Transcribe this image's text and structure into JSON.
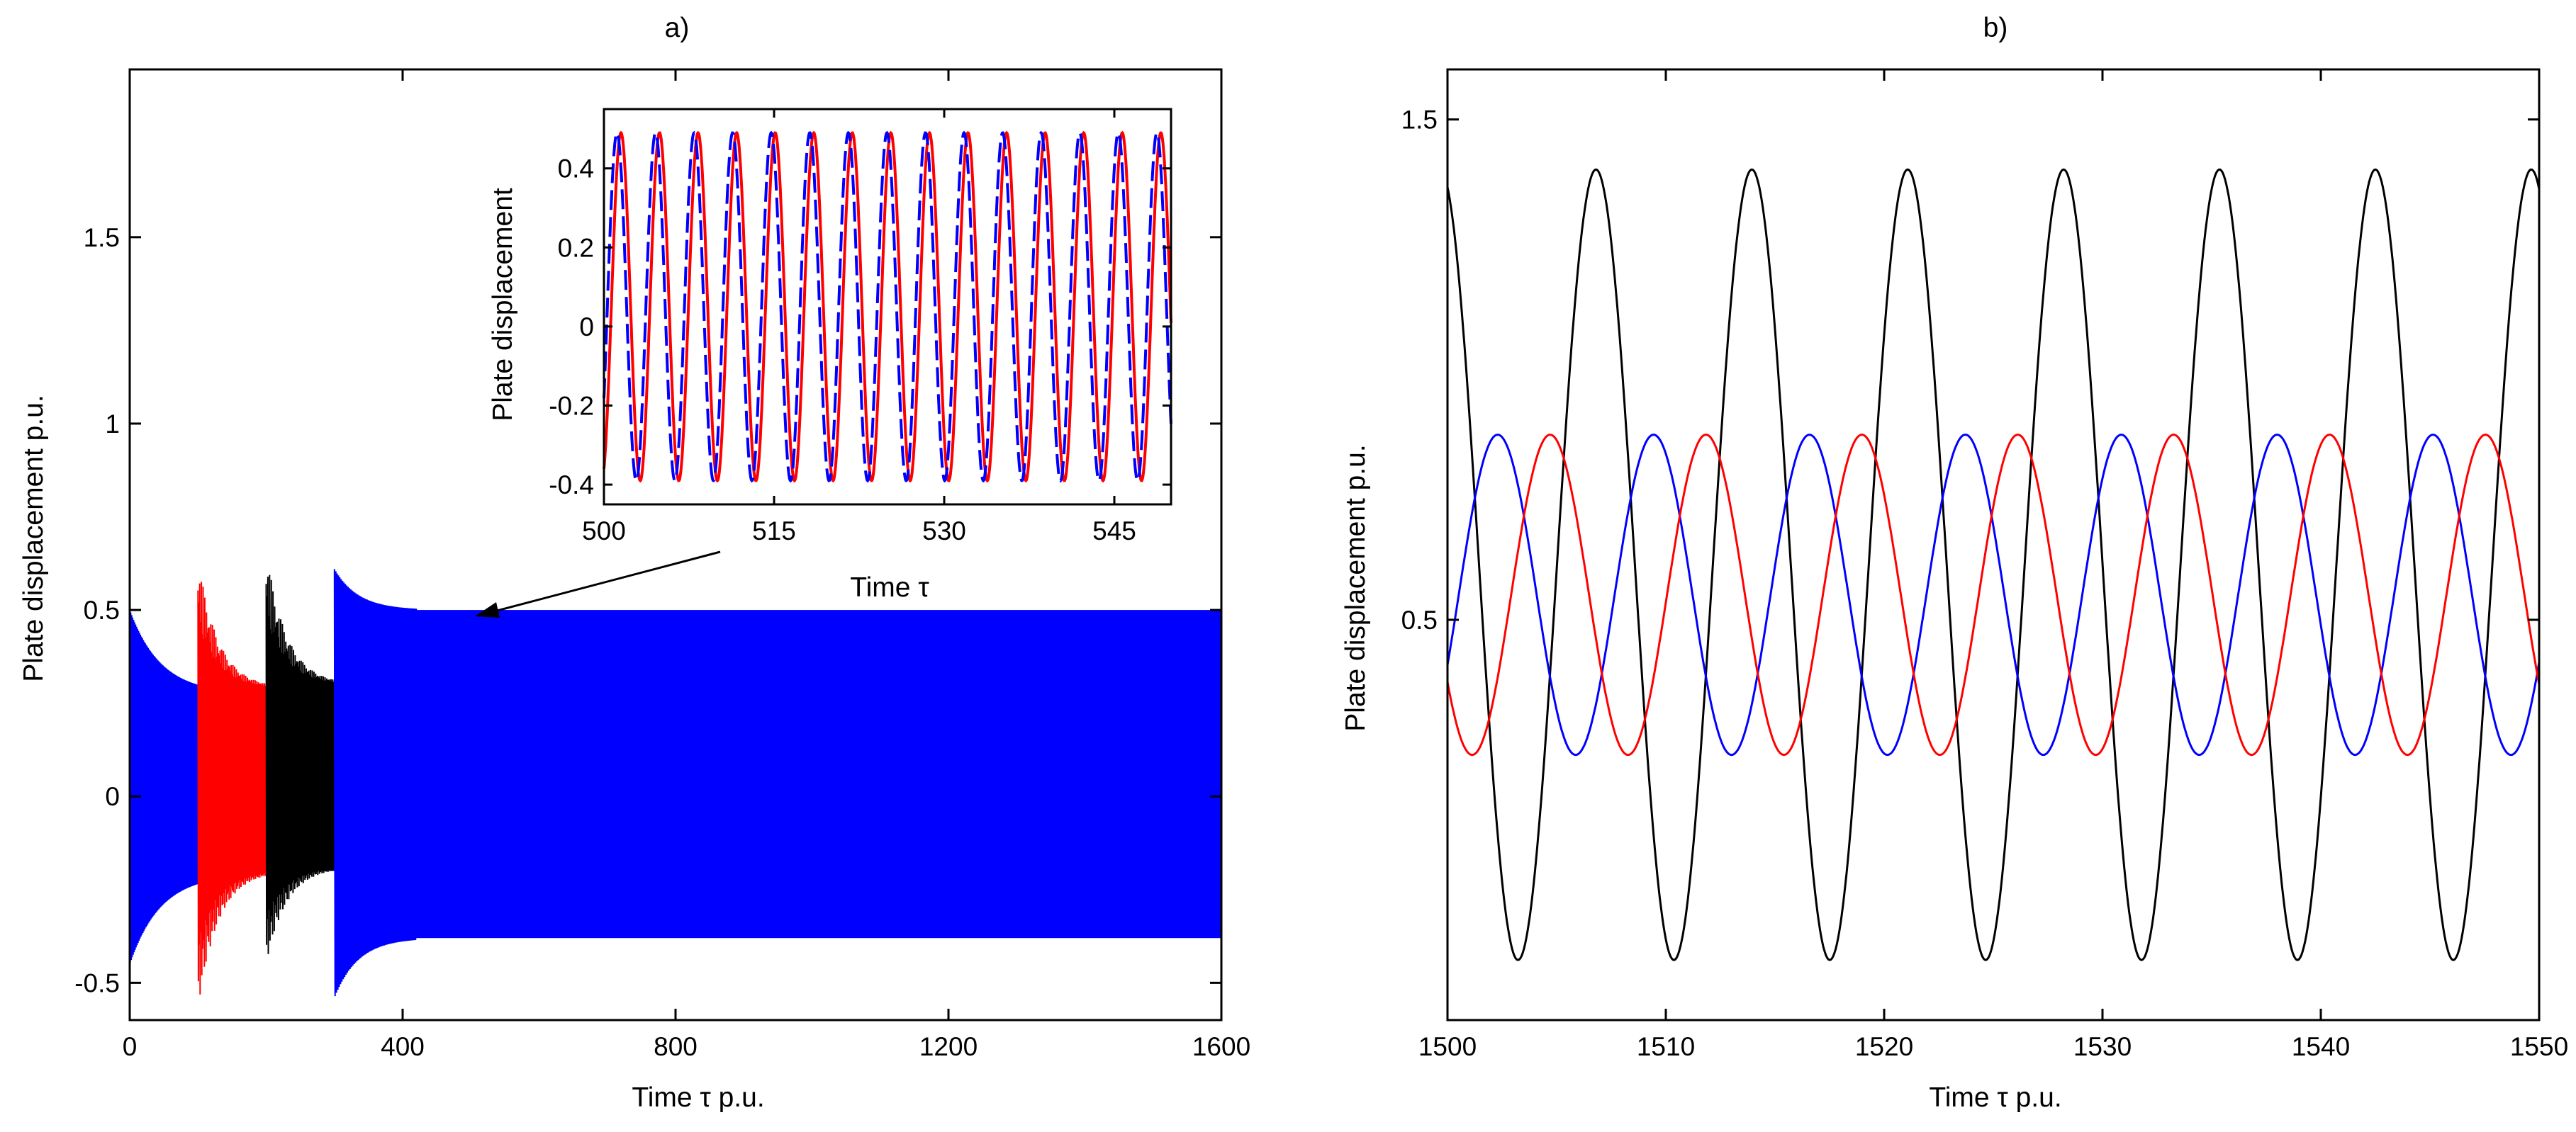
{
  "colors": {
    "red": "#ff0000",
    "black": "#000000",
    "blue": "#0000ff"
  },
  "chart_data": [
    {
      "type": "line",
      "title": "a)",
      "xlabel": "Time τ   p.u.",
      "ylabel": "Plate displacement  p.u.",
      "xlim": [
        0,
        1600
      ],
      "ylim": [
        -0.6,
        1.95
      ],
      "xticks": [
        "0",
        "400",
        "800",
        "1200",
        "1600"
      ],
      "yticks": [
        "-0.5",
        "0",
        "0.5",
        "1",
        "1.5"
      ],
      "series": [
        {
          "color": "red",
          "t_start": 100,
          "t_end": 200,
          "peak_max": 0.64,
          "peak_min": -0.57,
          "settle_max": 0.29,
          "settle_min": -0.2
        },
        {
          "color": "black",
          "t_start": 200,
          "t_end": 300,
          "peak_max": 0.66,
          "peak_min": -0.45,
          "settle_max": 0.3,
          "settle_min": -0.19
        },
        {
          "color": "blue",
          "t_start": 0,
          "t_end": 1600,
          "initial_max": 0.5,
          "initial_min": -0.45,
          "steady_max": 0.5,
          "steady_min": -0.38
        }
      ],
      "inset": {
        "xlabel": "Time τ",
        "ylabel": "Plate displacement",
        "xlim": [
          500,
          550
        ],
        "ylim": [
          -0.45,
          0.55
        ],
        "xticks": [
          "500",
          "515",
          "530",
          "545"
        ],
        "yticks": [
          "-0.4",
          "-0.2",
          "0",
          "0.2",
          "0.4"
        ],
        "series": [
          {
            "color": "red",
            "period": 3.4,
            "phase": 0.35,
            "max": 0.49,
            "min": -0.39
          },
          {
            "color": "blue",
            "period": 3.4,
            "phase": 0.0,
            "max": 0.49,
            "min": -0.39
          }
        ]
      }
    },
    {
      "type": "line",
      "title": "b)",
      "xlabel": "Time τ  p.u.",
      "ylabel": "Plate displacement  p.u.",
      "xlim": [
        1500,
        1550
      ],
      "ylim": [
        -0.3,
        1.6
      ],
      "xticks": [
        "1500",
        "1510",
        "1520",
        "1530",
        "1540",
        "1550"
      ],
      "yticks": [
        "0.5",
        "1.5"
      ],
      "series": [
        {
          "color": "black",
          "period": 7.14,
          "first_peak": 1506.8,
          "max": 1.4,
          "min": -0.18
        },
        {
          "color": "blue",
          "period": 7.14,
          "first_peak": 1502.3,
          "max": 0.87,
          "min": 0.23
        },
        {
          "color": "red",
          "period": 7.14,
          "first_peak": 1504.7,
          "max": 0.87,
          "min": 0.23
        }
      ]
    }
  ]
}
